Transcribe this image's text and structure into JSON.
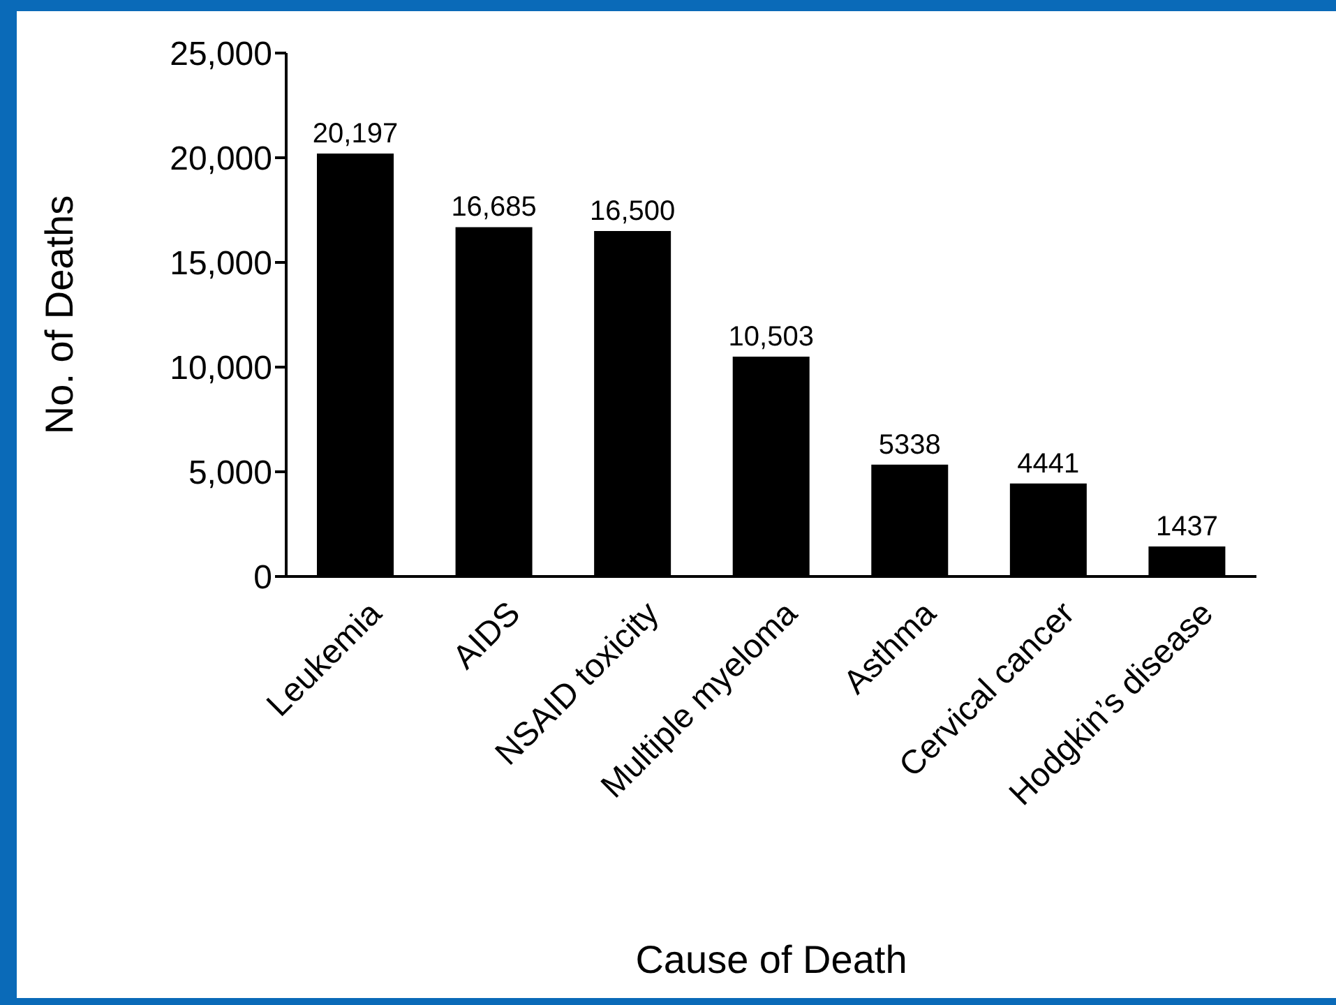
{
  "chart_data": {
    "type": "bar",
    "xlabel": "Cause of Death",
    "ylabel": "No. of Deaths",
    "categories": [
      "Leukemia",
      "AIDS",
      "NSAID toxicity",
      "Multiple myeloma",
      "Asthma",
      "Cervical cancer",
      "Hodgkin’s disease"
    ],
    "values": [
      20197,
      16685,
      16500,
      10503,
      5338,
      4441,
      1437
    ],
    "value_labels": [
      "20,197",
      "16,685",
      "16,500",
      "10,503",
      "5338",
      "4441",
      "1437"
    ],
    "color": "#000000",
    "ylim": [
      0,
      25000
    ],
    "yticks": [
      {
        "value": 0,
        "label": "0"
      },
      {
        "value": 5000,
        "label": "5,000"
      },
      {
        "value": 10000,
        "label": "10,000"
      },
      {
        "value": 15000,
        "label": "15,000"
      },
      {
        "value": 20000,
        "label": "20,000"
      },
      {
        "value": 25000,
        "label": "25,000"
      }
    ]
  }
}
